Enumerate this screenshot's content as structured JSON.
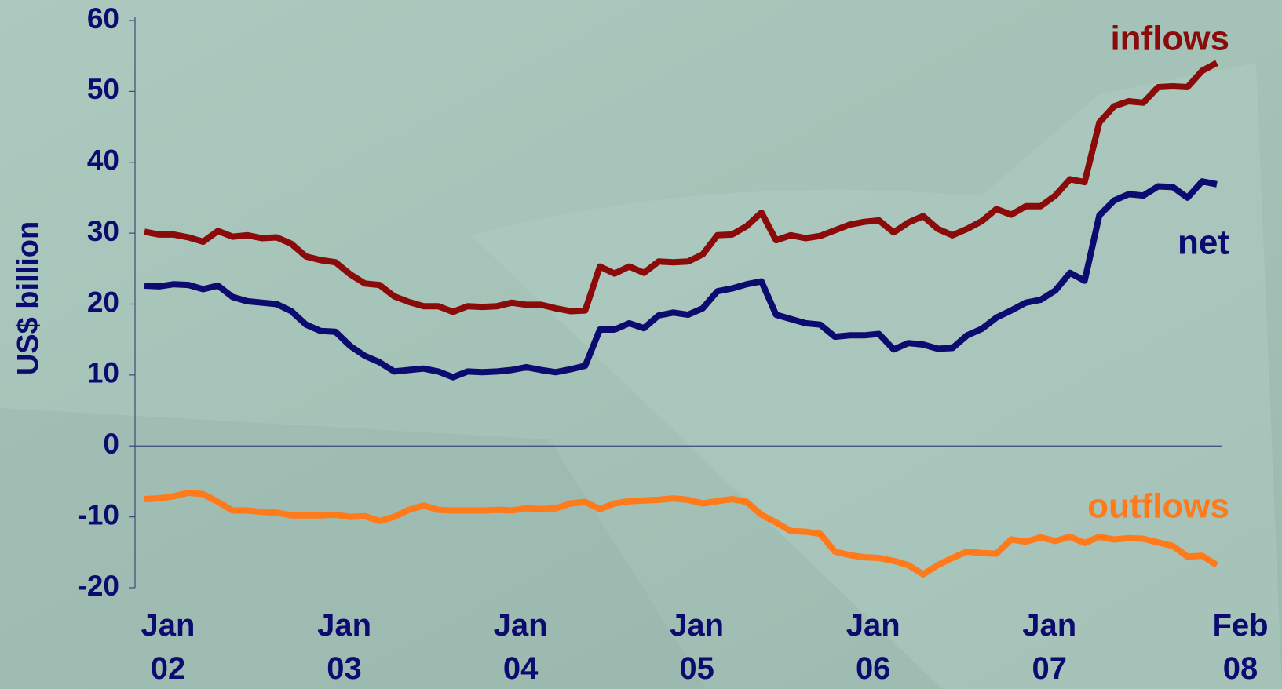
{
  "chart_data": {
    "type": "line",
    "y_label": "US$ billion",
    "categories": [
      "Jan 02",
      null,
      null,
      null,
      null,
      null,
      null,
      null,
      null,
      null,
      null,
      null,
      "Jan 03",
      null,
      null,
      null,
      null,
      null,
      null,
      null,
      null,
      null,
      null,
      null,
      "Jan 04",
      null,
      null,
      null,
      null,
      null,
      null,
      null,
      null,
      null,
      null,
      null,
      "Jan 05",
      null,
      null,
      null,
      null,
      null,
      null,
      null,
      null,
      null,
      null,
      null,
      "Jan 06",
      null,
      null,
      null,
      null,
      null,
      null,
      null,
      null,
      null,
      null,
      null,
      "Jan 07",
      null,
      null,
      null,
      null,
      null,
      null,
      null,
      null,
      null,
      null,
      null,
      null,
      "Feb 08"
    ],
    "series": [
      {
        "name": "inflows",
        "color": "#8b0a0a",
        "values": [
          30.2,
          29.8,
          29.8,
          29.4,
          28.8,
          30.3,
          29.5,
          29.7,
          29.3,
          29.4,
          28.5,
          26.7,
          26.2,
          25.9,
          24.2,
          22.9,
          22.7,
          21.1,
          20.3,
          19.7,
          19.7,
          18.9,
          19.7,
          19.6,
          19.7,
          20.2,
          19.9,
          19.9,
          19.4,
          19.0,
          19.1,
          25.3,
          24.3,
          25.3,
          24.4,
          26.0,
          25.9,
          26.0,
          27.0,
          29.7,
          29.8,
          31.0,
          32.9,
          29.0,
          29.7,
          29.3,
          29.6,
          30.4,
          31.2,
          31.6,
          31.8,
          30.1,
          31.5,
          32.4,
          30.6,
          29.7,
          30.6,
          31.7,
          33.4,
          32.6,
          33.8,
          33.8,
          35.3,
          37.6,
          37.2,
          45.6,
          47.9,
          48.6,
          48.4,
          50.6,
          50.7,
          50.6,
          52.9,
          54.0
        ]
      },
      {
        "name": "net",
        "color": "#0c0c70",
        "values": [
          22.6,
          22.5,
          22.8,
          22.7,
          22.1,
          22.6,
          21.0,
          20.4,
          20.2,
          20.0,
          19.0,
          17.1,
          16.2,
          16.1,
          14.1,
          12.7,
          11.8,
          10.5,
          10.7,
          10.9,
          10.5,
          9.7,
          10.5,
          10.4,
          10.5,
          10.7,
          11.1,
          10.7,
          10.4,
          10.8,
          11.3,
          16.4,
          16.4,
          17.3,
          16.6,
          18.4,
          18.8,
          18.5,
          19.4,
          21.8,
          22.2,
          22.8,
          23.2,
          18.5,
          17.9,
          17.3,
          17.1,
          15.4,
          15.6,
          15.6,
          15.8,
          13.6,
          14.5,
          14.3,
          13.7,
          13.8,
          15.6,
          16.5,
          18.1,
          19.1,
          20.2,
          20.6,
          21.9,
          24.4,
          23.3,
          32.5,
          34.6,
          35.5,
          35.3,
          36.6,
          36.5,
          35.0,
          37.3,
          36.9
        ]
      },
      {
        "name": "outflows",
        "color": "#ff7a1a",
        "values": [
          -7.5,
          -7.4,
          -7.1,
          -6.6,
          -6.8,
          -7.9,
          -9.1,
          -9.1,
          -9.3,
          -9.4,
          -9.8,
          -9.8,
          -9.8,
          -9.7,
          -10.0,
          -9.9,
          -10.6,
          -10.0,
          -9.0,
          -8.4,
          -9.0,
          -9.1,
          -9.1,
          -9.1,
          -9.0,
          -9.1,
          -8.8,
          -8.9,
          -8.8,
          -8.1,
          -7.9,
          -8.9,
          -8.1,
          -7.8,
          -7.7,
          -7.6,
          -7.4,
          -7.6,
          -8.1,
          -7.8,
          -7.5,
          -7.9,
          -9.7,
          -10.8,
          -12.0,
          -12.1,
          -12.4,
          -14.9,
          -15.4,
          -15.7,
          -15.8,
          -16.2,
          -16.8,
          -18.1,
          -16.8,
          -15.8,
          -14.9,
          -15.1,
          -15.2,
          -13.2,
          -13.5,
          -12.9,
          -13.4,
          -12.8,
          -13.7,
          -12.8,
          -13.2,
          -13.0,
          -13.1,
          -13.6,
          -14.1,
          -15.6,
          -15.5,
          -16.8
        ]
      }
    ],
    "ylim": [
      -20,
      60
    ],
    "yticks": [
      -20,
      -10,
      0,
      10,
      20,
      30,
      40,
      50,
      60
    ]
  }
}
